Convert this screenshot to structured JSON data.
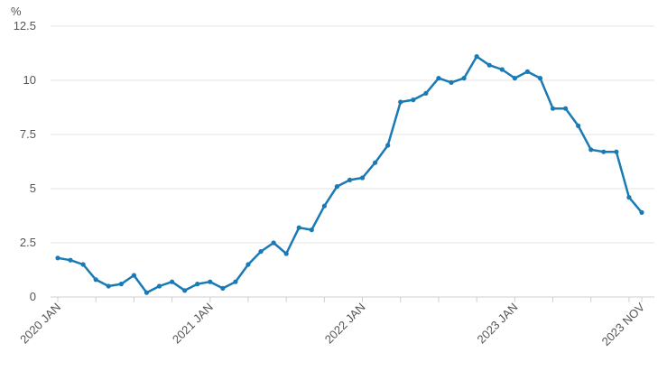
{
  "chart_data": {
    "type": "line",
    "ylabel": "%",
    "ylim": [
      0,
      12.5
    ],
    "yticks": [
      "0",
      "2.5",
      "5",
      "7.5",
      "10",
      "12.5"
    ],
    "ytick_values": [
      0,
      2.5,
      5,
      7.5,
      10,
      12.5
    ],
    "xtick_labels": [
      "2020 JAN",
      "2021 JAN",
      "2022 JAN",
      "2023 JAN",
      "2023 NOV"
    ],
    "xtick_indices": [
      0,
      12,
      24,
      36,
      46
    ],
    "x_start": "2020-01",
    "x_end": "2023-11",
    "grid": true,
    "series": [
      {
        "color": "#1a7ab5",
        "values": [
          1.8,
          1.7,
          1.5,
          0.8,
          0.5,
          0.6,
          1.0,
          0.2,
          0.5,
          0.7,
          0.3,
          0.6,
          0.7,
          0.4,
          0.7,
          1.5,
          2.1,
          2.5,
          2.0,
          3.2,
          3.1,
          4.2,
          5.1,
          5.4,
          5.5,
          6.2,
          7.0,
          9.0,
          9.1,
          9.4,
          10.1,
          9.9,
          10.1,
          11.1,
          10.7,
          10.5,
          10.1,
          10.4,
          10.1,
          8.7,
          8.7,
          7.9,
          6.8,
          6.7,
          6.7,
          4.6,
          3.9
        ]
      }
    ]
  }
}
